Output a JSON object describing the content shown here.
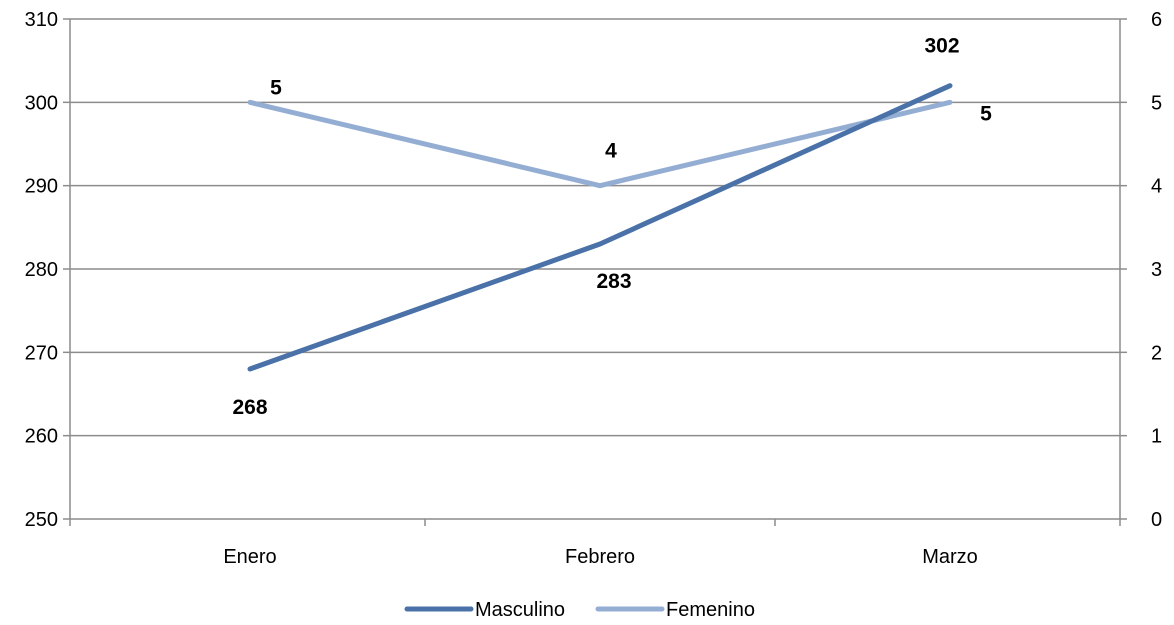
{
  "chart_data": {
    "type": "line",
    "categories": [
      "Enero",
      "Febrero",
      "Marzo"
    ],
    "series": [
      {
        "name": "Masculino",
        "axis": "left",
        "values": [
          268,
          283,
          302
        ],
        "color": "#4a72a8"
      },
      {
        "name": "Femenino",
        "axis": "right",
        "values": [
          5,
          4,
          5
        ],
        "color": "#94aed3"
      }
    ],
    "y_left": {
      "min": 250,
      "max": 310,
      "step": 10,
      "ticks": [
        "250",
        "260",
        "270",
        "280",
        "290",
        "300",
        "310"
      ]
    },
    "y_right": {
      "min": 0,
      "max": 6,
      "step": 1,
      "ticks": [
        "0",
        "1",
        "2",
        "3",
        "4",
        "5",
        "6"
      ]
    },
    "grid": true,
    "legend_position": "bottom",
    "data_labels": true
  }
}
